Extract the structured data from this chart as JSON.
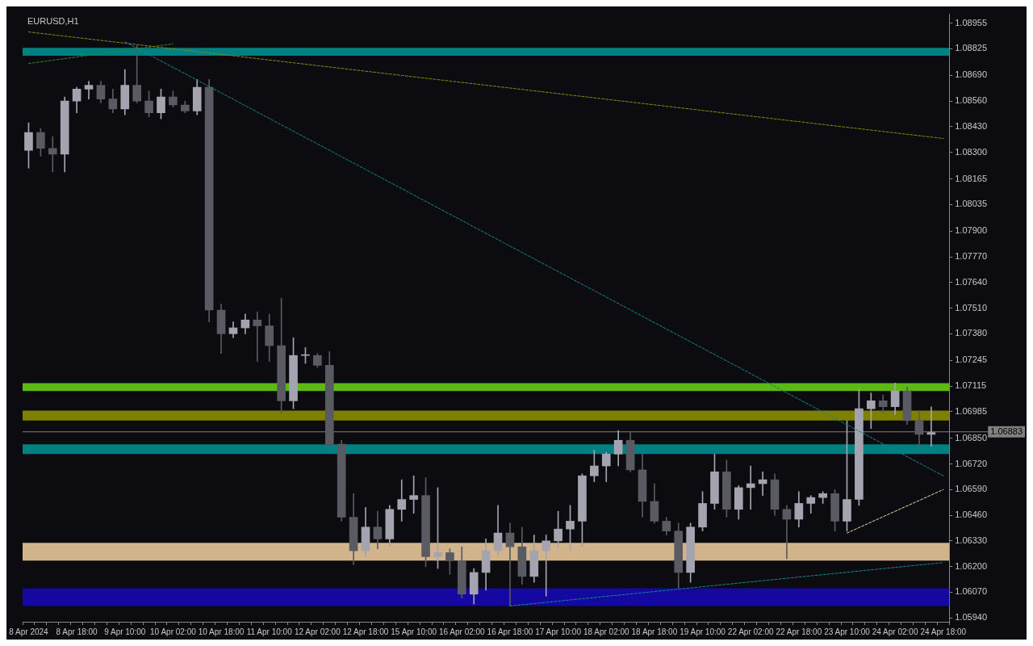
{
  "chart_data": {
    "type": "candlestick",
    "title": "EURUSD,H1",
    "categories": [
      "8 Apr 2024",
      null,
      null,
      null,
      "8 Apr 18:00",
      null,
      null,
      null,
      "9 Apr 10:00",
      null,
      null,
      null,
      "10 Apr 02:00",
      null,
      null,
      null,
      "10 Apr 18:00",
      null,
      null,
      null,
      "11 Apr 10:00",
      null,
      null,
      null,
      "12 Apr 02:00",
      null,
      null,
      null,
      "12 Apr 18:00",
      null,
      null,
      null,
      "15 Apr 10:00",
      null,
      null,
      null,
      "16 Apr 02:00",
      null,
      null,
      null,
      "16 Apr 18:00",
      null,
      null,
      null,
      "17 Apr 10:00",
      null,
      null,
      null,
      "18 Apr 02:00",
      null,
      null,
      null,
      "18 Apr 18:00",
      null,
      null,
      null,
      "19 Apr 10:00",
      null,
      null,
      null,
      "22 Apr 02:00",
      null,
      null,
      null,
      "22 Apr 18:00",
      null,
      null,
      null,
      "23 Apr 10:00",
      null,
      null,
      null,
      "24 Apr 02:00",
      null,
      null,
      null,
      "24 Apr 18:00"
    ],
    "ohlc": [
      [
        1.0831,
        1.0845,
        1.0822,
        1.084
      ],
      [
        1.084,
        1.0842,
        1.0828,
        1.0832
      ],
      [
        1.0832,
        1.0838,
        1.082,
        1.0829
      ],
      [
        1.0829,
        1.0858,
        1.082,
        1.0856
      ],
      [
        1.0856,
        1.0863,
        1.085,
        1.0862
      ],
      [
        1.0862,
        1.0866,
        1.0857,
        1.0864
      ],
      [
        1.0864,
        1.0866,
        1.0855,
        1.0857
      ],
      [
        1.0857,
        1.0862,
        1.085,
        1.0852
      ],
      [
        1.0852,
        1.0872,
        1.0849,
        1.0864
      ],
      [
        1.0864,
        1.0884,
        1.0855,
        1.0856
      ],
      [
        1.0856,
        1.0861,
        1.0848,
        1.085
      ],
      [
        1.085,
        1.0862,
        1.0847,
        1.0858
      ],
      [
        1.0858,
        1.0861,
        1.0853,
        1.0854
      ],
      [
        1.0854,
        1.0856,
        1.085,
        1.0851
      ],
      [
        1.0851,
        1.0867,
        1.0849,
        1.0863
      ],
      [
        1.0863,
        1.0867,
        1.0744,
        1.075
      ],
      [
        1.075,
        1.0753,
        1.0728,
        1.0738
      ],
      [
        1.0738,
        1.0744,
        1.0736,
        1.0741
      ],
      [
        1.0741,
        1.0748,
        1.0738,
        1.0745
      ],
      [
        1.0745,
        1.0749,
        1.0724,
        1.0742
      ],
      [
        1.0742,
        1.0748,
        1.0724,
        1.0732
      ],
      [
        1.0732,
        1.0756,
        1.0698,
        1.0704
      ],
      [
        1.0704,
        1.0736,
        1.07,
        1.0727
      ],
      [
        1.0727,
        1.0731,
        1.0723,
        1.0727
      ],
      [
        1.0727,
        1.0728,
        1.0721,
        1.0722
      ],
      [
        1.0722,
        1.0729,
        1.068,
        1.0682
      ],
      [
        1.0682,
        1.0684,
        1.0643,
        1.0645
      ],
      [
        1.0645,
        1.0657,
        1.0621,
        1.0628
      ],
      [
        1.0628,
        1.065,
        1.0625,
        1.064
      ],
      [
        1.064,
        1.0648,
        1.0629,
        1.0634
      ],
      [
        1.0634,
        1.0651,
        1.063,
        1.0649
      ],
      [
        1.0649,
        1.0664,
        1.0643,
        1.0654
      ],
      [
        1.0654,
        1.0666,
        1.0647,
        1.0656
      ],
      [
        1.0656,
        1.0665,
        1.062,
        1.0625
      ],
      [
        1.0625,
        1.066,
        1.0619,
        1.0627
      ],
      [
        1.0627,
        1.0629,
        1.0616,
        1.0623
      ],
      [
        1.0623,
        1.063,
        1.0604,
        1.0606
      ],
      [
        1.0606,
        1.0619,
        1.0601,
        1.0617
      ],
      [
        1.0617,
        1.0634,
        1.0608,
        1.0628
      ],
      [
        1.0628,
        1.0651,
        1.0625,
        1.0637
      ],
      [
        1.0637,
        1.0642,
        1.06,
        1.063
      ],
      [
        1.063,
        1.064,
        1.0611,
        1.0615
      ],
      [
        1.0615,
        1.0636,
        1.0612,
        1.0628
      ],
      [
        1.0628,
        1.0636,
        1.0605,
        1.0633
      ],
      [
        1.0633,
        1.0648,
        1.063,
        1.0639
      ],
      [
        1.0639,
        1.0651,
        1.0628,
        1.0643
      ],
      [
        1.0643,
        1.0667,
        1.063,
        1.0666
      ],
      [
        1.0666,
        1.0679,
        1.0663,
        1.0671
      ],
      [
        1.0671,
        1.0678,
        1.0663,
        1.0677
      ],
      [
        1.0677,
        1.0689,
        1.0671,
        1.0684
      ],
      [
        1.0684,
        1.0688,
        1.0668,
        1.0669
      ],
      [
        1.0669,
        1.0677,
        1.0645,
        1.0653
      ],
      [
        1.0653,
        1.0662,
        1.0642,
        1.0643
      ],
      [
        1.0643,
        1.0645,
        1.0636,
        1.0638
      ],
      [
        1.0638,
        1.0642,
        1.0609,
        1.0617
      ],
      [
        1.0617,
        1.0642,
        1.0612,
        1.064
      ],
      [
        1.064,
        1.0658,
        1.0638,
        1.0652
      ],
      [
        1.0652,
        1.0677,
        1.0649,
        1.0668
      ],
      [
        1.0668,
        1.0674,
        1.0645,
        1.0649
      ],
      [
        1.0649,
        1.0661,
        1.0644,
        1.066
      ],
      [
        1.066,
        1.0671,
        1.0649,
        1.0662
      ],
      [
        1.0662,
        1.0668,
        1.0656,
        1.0664
      ],
      [
        1.0664,
        1.0667,
        1.0646,
        1.0649
      ],
      [
        1.0649,
        1.0651,
        1.0624,
        1.0644
      ],
      [
        1.0644,
        1.0658,
        1.064,
        1.0652
      ],
      [
        1.0652,
        1.0656,
        1.0647,
        1.0655
      ],
      [
        1.0655,
        1.0658,
        1.0652,
        1.0657
      ],
      [
        1.0657,
        1.0659,
        1.0638,
        1.0643
      ],
      [
        1.0643,
        1.0694,
        1.0638,
        1.0654
      ],
      [
        1.0654,
        1.071,
        1.0651,
        1.07
      ],
      [
        1.07,
        1.0708,
        1.069,
        1.0704
      ],
      [
        1.0704,
        1.0707,
        1.0698,
        1.0701
      ],
      [
        1.0701,
        1.0713,
        1.0697,
        1.0709
      ],
      [
        1.0709,
        1.0711,
        1.0692,
        1.0694
      ],
      [
        1.0694,
        1.0699,
        1.068,
        1.0687
      ],
      [
        1.0687,
        1.0701,
        1.0681,
        1.0688
      ],
      null
    ],
    "colors": [
      "#a4a4b0",
      "#5a5a62",
      "#5a5a62",
      "#a4a4b0",
      "#a4a4b0",
      "#a4a4b0",
      "#5a5a62",
      "#5a5a62",
      "#a4a4b0",
      "#5a5a62",
      "#5a5a62",
      "#a4a4b0",
      "#5a5a62",
      "#5a5a62",
      "#a4a4b0",
      "#5a5a62",
      "#5a5a62",
      "#a4a4b0",
      "#a4a4b0",
      "#5a5a62",
      "#5a5a62",
      "#5a5a62",
      "#a4a4b0",
      "#a4a4b0",
      "#5a5a62",
      "#5a5a62",
      "#5a5a62",
      "#5a5a62",
      "#a4a4b0",
      "#5a5a62",
      "#a4a4b0",
      "#a4a4b0",
      "#a4a4b0",
      "#5a5a62",
      "#a4a4b0",
      "#5a5a62",
      "#5a5a62",
      "#a4a4b0",
      "#a4a4b0",
      "#a4a4b0",
      "#5a5a62",
      "#5a5a62",
      "#a4a4b0",
      "#a4a4b0",
      "#a4a4b0",
      "#a4a4b0",
      "#a4a4b0",
      "#a4a4b0",
      "#a4a4b0",
      "#a4a4b0",
      "#5a5a62",
      "#5a5a62",
      "#5a5a62",
      "#5a5a62",
      "#5a5a62",
      "#a4a4b0",
      "#a4a4b0",
      "#a4a4b0",
      "#5a5a62",
      "#a4a4b0",
      "#a4a4b0",
      "#a4a4b0",
      "#5a5a62",
      "#5a5a62",
      "#a4a4b0",
      "#a4a4b0",
      "#a4a4b0",
      "#5a5a62",
      "#a4a4b0",
      "#a4a4b0",
      "#a4a4b0",
      "#5a5a62",
      "#a4a4b0",
      "#5a5a62",
      "#5a5a62",
      "#a4a4b0",
      null
    ],
    "series": [
      {
        "type": "line",
        "x": [
          "9 Apr 10:00",
          "24 Apr 18:00"
        ],
        "values": [
          1.0886,
          1.0666
        ],
        "color": "#0e8a8a",
        "line_style": "dashed"
      },
      {
        "type": "line",
        "x": [
          "8 Apr 2024",
          "24 Apr 18:00"
        ],
        "values": [
          1.0891,
          1.0837
        ],
        "color": "#8a8a10",
        "line_style": "dashed"
      },
      {
        "type": "line",
        "x": [
          "8 Apr 2024",
          "10 Apr 02:00"
        ],
        "values": [
          1.0875,
          1.0885
        ],
        "color": "#2a8a2a",
        "line_style": "dashed"
      },
      {
        "type": "line",
        "x": [
          "23 Apr 10:00",
          "24 Apr 18:00"
        ],
        "values": [
          1.0637,
          1.0659
        ],
        "color": "#e8d8b0",
        "line_style": "dashed"
      },
      {
        "type": "line",
        "x": [
          "16 Apr 18:00",
          "24 Apr 18:00"
        ],
        "values": [
          1.06,
          1.0622
        ],
        "color": "#0e8a8a",
        "line_style": "dashed"
      }
    ],
    "bands": [
      {
        "axis": "y",
        "from": 1.0879,
        "to": 1.0883,
        "color": "#008080"
      },
      {
        "axis": "y",
        "from": 1.0694,
        "to": 1.0699,
        "color": "#808000"
      },
      {
        "axis": "y",
        "from": 1.06,
        "to": 1.0609,
        "color": "#1408a0"
      },
      {
        "axis": "y",
        "from": 1.0623,
        "to": 1.0632,
        "color": "#d2b48c"
      },
      {
        "axis": "y",
        "from": 1.0709,
        "to": 1.0713,
        "color": "#5cb814"
      },
      {
        "axis": "y",
        "from": 1.0677,
        "to": 1.0682,
        "color": "#008080"
      }
    ],
    "ref_lines": [
      {
        "axis": "y",
        "value": 1.06883,
        "label": "1.06883",
        "color": "#808080"
      }
    ],
    "ylim": [
      1.0592,
      1.09
    ],
    "yticks": [
      {
        "value": 1.0594,
        "label": "1.05940"
      },
      {
        "value": 1.0607,
        "label": "1.06070"
      },
      {
        "value": 1.062,
        "label": "1.06200"
      },
      {
        "value": 1.0633,
        "label": "1.06330"
      },
      {
        "value": 1.0646,
        "label": "1.06460"
      },
      {
        "value": 1.0659,
        "label": "1.06590"
      },
      {
        "value": 1.0672,
        "label": "1.06720"
      },
      {
        "value": 1.0685,
        "label": "1.06850"
      },
      1.06985,
      1.07115,
      1.07245,
      {
        "value": 1.0738,
        "label": "1.07380"
      },
      {
        "value": 1.0751,
        "label": "1.07510"
      },
      {
        "value": 1.0764,
        "label": "1.07640"
      },
      {
        "value": 1.0777,
        "label": "1.07770"
      },
      {
        "value": 1.079,
        "label": "1.07900"
      },
      1.08035,
      1.08165,
      {
        "value": 1.083,
        "label": "1.08300"
      },
      {
        "value": 1.0843,
        "label": "1.08430"
      },
      {
        "value": 1.0856,
        "label": "1.08560"
      },
      {
        "value": 1.0869,
        "label": "1.08690"
      },
      1.08825,
      1.08955
    ],
    "grid": false,
    "legend": false
  }
}
